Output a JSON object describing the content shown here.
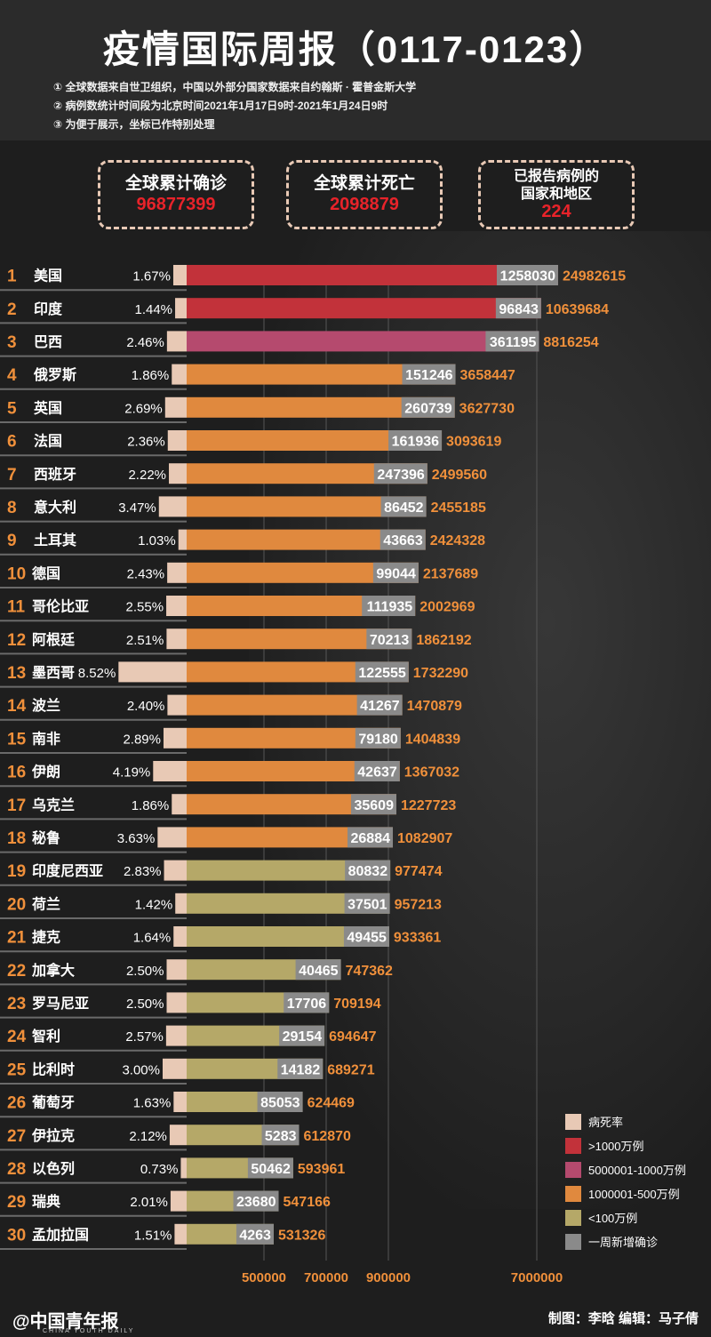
{
  "title": "疫情国际周报（0117-0123）",
  "notes": [
    "① 全球数据来自世卫组织，中国以外部分国家数据来自约翰斯 · 霍普金斯大学",
    "② 病例数统计时间段为北京时间2021年1月17日9时-2021年1月24日9时",
    "③ 为便于展示，坐标已作特别处理"
  ],
  "stats": {
    "confirmed_label": "全球累计确诊",
    "confirmed_value": "96877399",
    "deaths_label": "全球累计死亡",
    "deaths_value": "2098879",
    "countries_label_1": "已报告病例的",
    "countries_label_2": "国家和地区",
    "countries_value": "224"
  },
  "colors": {
    "rate": "#e8c9b5",
    "over10m": "#c2323a",
    "5m_10m": "#b54a6e",
    "1m_5m": "#e0893e",
    "under1m": "#b5a868",
    "weekly": "#8a8a8a"
  },
  "legend": [
    {
      "label": "病死率",
      "color_key": "rate"
    },
    {
      "label": ">1000万例",
      "color_key": "over10m"
    },
    {
      "label": "5000001-1000万例",
      "color_key": "5m_10m"
    },
    {
      "label": "1000001-500万例",
      "color_key": "1m_5m"
    },
    {
      "label": "<100万例",
      "color_key": "under1m"
    },
    {
      "label": "一周新增确诊",
      "color_key": "weekly"
    }
  ],
  "chart_data": {
    "type": "bar",
    "x_ticks": [
      "500000",
      "700000",
      "900000",
      "7000000"
    ],
    "scale": "custom-nonlinear",
    "columns": [
      "rank",
      "country",
      "case_fatality_rate",
      "weekly_new_cases",
      "total_confirmed"
    ],
    "rows": [
      [
        1,
        "美国",
        "1.67%",
        1258030,
        24982615
      ],
      [
        2,
        "印度",
        "1.44%",
        96843,
        10639684
      ],
      [
        3,
        "巴西",
        "2.46%",
        361195,
        8816254
      ],
      [
        4,
        "俄罗斯",
        "1.86%",
        151246,
        3658447
      ],
      [
        5,
        "英国",
        "2.69%",
        260739,
        3627730
      ],
      [
        6,
        "法国",
        "2.36%",
        161936,
        3093619
      ],
      [
        7,
        "西班牙",
        "2.22%",
        247396,
        2499560
      ],
      [
        8,
        "意大利",
        "3.47%",
        86452,
        2455185
      ],
      [
        9,
        "土耳其",
        "1.03%",
        43663,
        2424328
      ],
      [
        10,
        "德国",
        "2.43%",
        99044,
        2137689
      ],
      [
        11,
        "哥伦比亚",
        "2.55%",
        111935,
        2002969
      ],
      [
        12,
        "阿根廷",
        "2.51%",
        70213,
        1862192
      ],
      [
        13,
        "墨西哥",
        "8.52%",
        122555,
        1732290
      ],
      [
        14,
        "波兰",
        "2.40%",
        41267,
        1470879
      ],
      [
        15,
        "南非",
        "2.89%",
        79180,
        1404839
      ],
      [
        16,
        "伊朗",
        "4.19%",
        42637,
        1367032
      ],
      [
        17,
        "乌克兰",
        "1.86%",
        35609,
        1227723
      ],
      [
        18,
        "秘鲁",
        "3.63%",
        26884,
        1082907
      ],
      [
        19,
        "印度尼西亚",
        "2.83%",
        80832,
        977474
      ],
      [
        20,
        "荷兰",
        "1.42%",
        37501,
        957213
      ],
      [
        21,
        "捷克",
        "1.64%",
        49455,
        933361
      ],
      [
        22,
        "加拿大",
        "2.50%",
        40465,
        747362
      ],
      [
        23,
        "罗马尼亚",
        "2.50%",
        17706,
        709194
      ],
      [
        24,
        "智利",
        "2.57%",
        29154,
        694647
      ],
      [
        25,
        "比利时",
        "3.00%",
        14182,
        689271
      ],
      [
        26,
        "葡萄牙",
        "1.63%",
        85053,
        624469
      ],
      [
        27,
        "伊拉克",
        "2.12%",
        5283,
        612870
      ],
      [
        28,
        "以色列",
        "0.73%",
        50462,
        593961
      ],
      [
        29,
        "瑞典",
        "2.01%",
        23680,
        547166
      ],
      [
        30,
        "孟加拉国",
        "1.51%",
        4263,
        531326
      ]
    ]
  },
  "footer": {
    "logo": "@中国青年报",
    "logo_sub": "CHINA YOUTH DAILY",
    "credits": "制图：李晗   编辑：马子倩"
  }
}
